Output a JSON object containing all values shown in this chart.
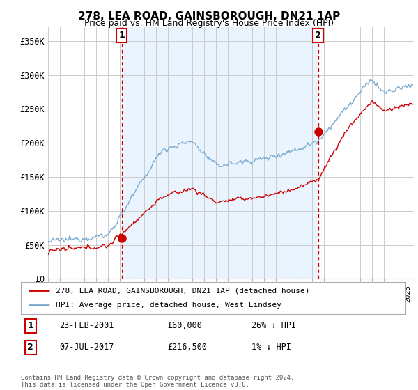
{
  "title": "278, LEA ROAD, GAINSBOROUGH, DN21 1AP",
  "subtitle": "Price paid vs. HM Land Registry's House Price Index (HPI)",
  "ylabel_ticks": [
    "£0",
    "£50K",
    "£100K",
    "£150K",
    "£200K",
    "£250K",
    "£300K",
    "£350K"
  ],
  "ytick_values": [
    0,
    50000,
    100000,
    150000,
    200000,
    250000,
    300000,
    350000
  ],
  "ylim": [
    0,
    370000
  ],
  "xlim_start": 1995.0,
  "xlim_end": 2025.5,
  "purchase1_x": 2001.15,
  "purchase1_y": 60000,
  "purchase2_x": 2017.52,
  "purchase2_y": 216500,
  "red_color": "#cc0000",
  "blue_color": "#7aaad0",
  "fill_color": "#ddeeff",
  "vline_color": "#cc0000",
  "grid_color": "#cccccc",
  "legend_label_red": "278, LEA ROAD, GAINSBOROUGH, DN21 1AP (detached house)",
  "legend_label_blue": "HPI: Average price, detached house, West Lindsey",
  "annotation1_label": "1",
  "annotation2_label": "2",
  "table_row1": [
    "1",
    "23-FEB-2001",
    "£60,000",
    "26% ↓ HPI"
  ],
  "table_row2": [
    "2",
    "07-JUL-2017",
    "£216,500",
    "1% ↓ HPI"
  ],
  "footer": "Contains HM Land Registry data © Crown copyright and database right 2024.\nThis data is licensed under the Open Government Licence v3.0.",
  "background_color": "#ffffff"
}
